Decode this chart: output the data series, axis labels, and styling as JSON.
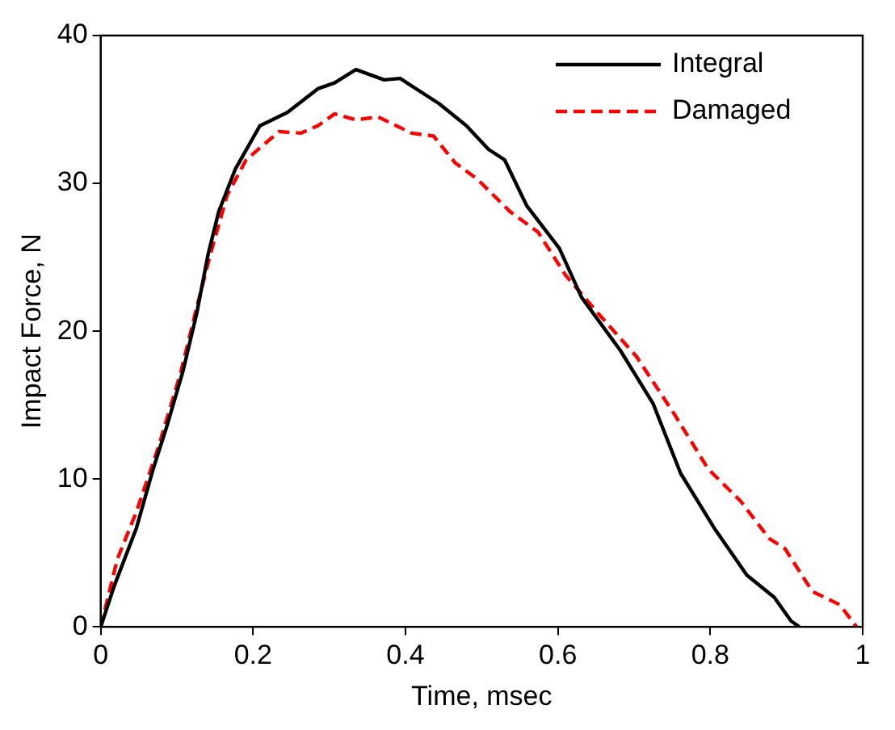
{
  "chart_data": {
    "type": "line",
    "xlabel": "Time, msec",
    "ylabel": "Impact Force, N",
    "xlim": [
      0,
      1
    ],
    "xticks": [
      0,
      0.2,
      0.4,
      0.6,
      0.8,
      1
    ],
    "ylim": [
      0,
      40
    ],
    "yticks": [
      0,
      10,
      20,
      30,
      40
    ],
    "grid": false,
    "legend": "top right",
    "marker": "none",
    "series": [
      {
        "name": "Integral",
        "color": "#000000",
        "line_style": "solid",
        "x": [
          0,
          0.018,
          0.047,
          0.069,
          0.087,
          0.108,
          0.126,
          0.141,
          0.155,
          0.177,
          0.209,
          0.245,
          0.285,
          0.307,
          0.335,
          0.372,
          0.393,
          0.444,
          0.48,
          0.509,
          0.53,
          0.559,
          0.602,
          0.631,
          0.682,
          0.725,
          0.761,
          0.805,
          0.848,
          0.884,
          0.906,
          0.917
        ],
        "values": [
          0,
          2.8,
          6.7,
          10.7,
          13.6,
          17.3,
          21.2,
          25.2,
          28.1,
          31,
          33.9,
          34.8,
          36.4,
          36.8,
          37.7,
          37,
          37.1,
          35.4,
          33.9,
          32.3,
          31.6,
          28.5,
          25.6,
          22.3,
          18.7,
          15.1,
          10.4,
          6.7,
          3.5,
          2,
          0.4,
          0
        ]
      },
      {
        "name": "Damaged",
        "color": "#ff0000",
        "line_style": "dashed",
        "x": [
          0,
          0.022,
          0.047,
          0.076,
          0.105,
          0.126,
          0.144,
          0.166,
          0.191,
          0.234,
          0.263,
          0.285,
          0.307,
          0.335,
          0.364,
          0.408,
          0.437,
          0.465,
          0.494,
          0.537,
          0.574,
          0.61,
          0.653,
          0.703,
          0.754,
          0.797,
          0.84,
          0.877,
          0.898,
          0.934,
          0.97,
          0.992
        ],
        "values": [
          0,
          4.6,
          7.8,
          12.2,
          17.2,
          21.6,
          25.2,
          29.2,
          31.6,
          33.5,
          33.4,
          33.9,
          34.7,
          34.3,
          34.5,
          33.4,
          33.2,
          31.4,
          30.3,
          28.1,
          26.7,
          23.8,
          21.2,
          18.3,
          14.3,
          10.7,
          8.5,
          6,
          5.3,
          2.4,
          1.5,
          0
        ]
      }
    ]
  }
}
